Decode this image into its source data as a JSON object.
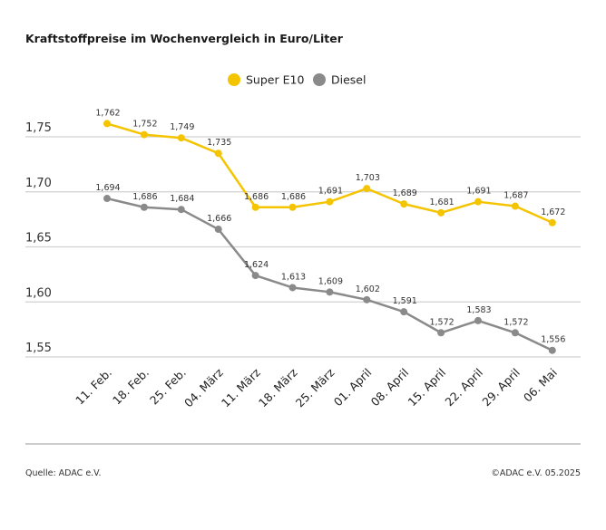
{
  "chart_data": {
    "type": "line",
    "title": "Kraftstoffpreise im Wochenvergleich in Euro/Liter",
    "categories": [
      "11. Feb.",
      "18. Feb.",
      "25. Feb.",
      "04. März",
      "11. März",
      "18. März",
      "25. März",
      "01. April",
      "08. April",
      "15. April",
      "22. April",
      "29. April",
      "06. Mai"
    ],
    "series": [
      {
        "name": "Super E10",
        "color": "#f5c400",
        "values": [
          1.762,
          1.752,
          1.749,
          1.735,
          1.686,
          1.686,
          1.691,
          1.703,
          1.689,
          1.681,
          1.691,
          1.687,
          1.672
        ]
      },
      {
        "name": "Diesel",
        "color": "#8a8a8a",
        "values": [
          1.694,
          1.686,
          1.684,
          1.666,
          1.624,
          1.613,
          1.609,
          1.602,
          1.591,
          1.572,
          1.583,
          1.572,
          1.556
        ]
      }
    ],
    "yticks": [
      1.75,
      1.7,
      1.65,
      1.6,
      1.55
    ],
    "ytick_labels": [
      "1,75",
      "1,70",
      "1,65",
      "1,60",
      "1,55"
    ],
    "ylim": [
      1.55,
      1.75
    ],
    "grid": true,
    "legend_position": "top-center",
    "xlabel": "",
    "ylabel": ""
  },
  "footer": {
    "source": "Quelle: ADAC e.V.",
    "copyright": "©ADAC e.V. 05.2025"
  }
}
